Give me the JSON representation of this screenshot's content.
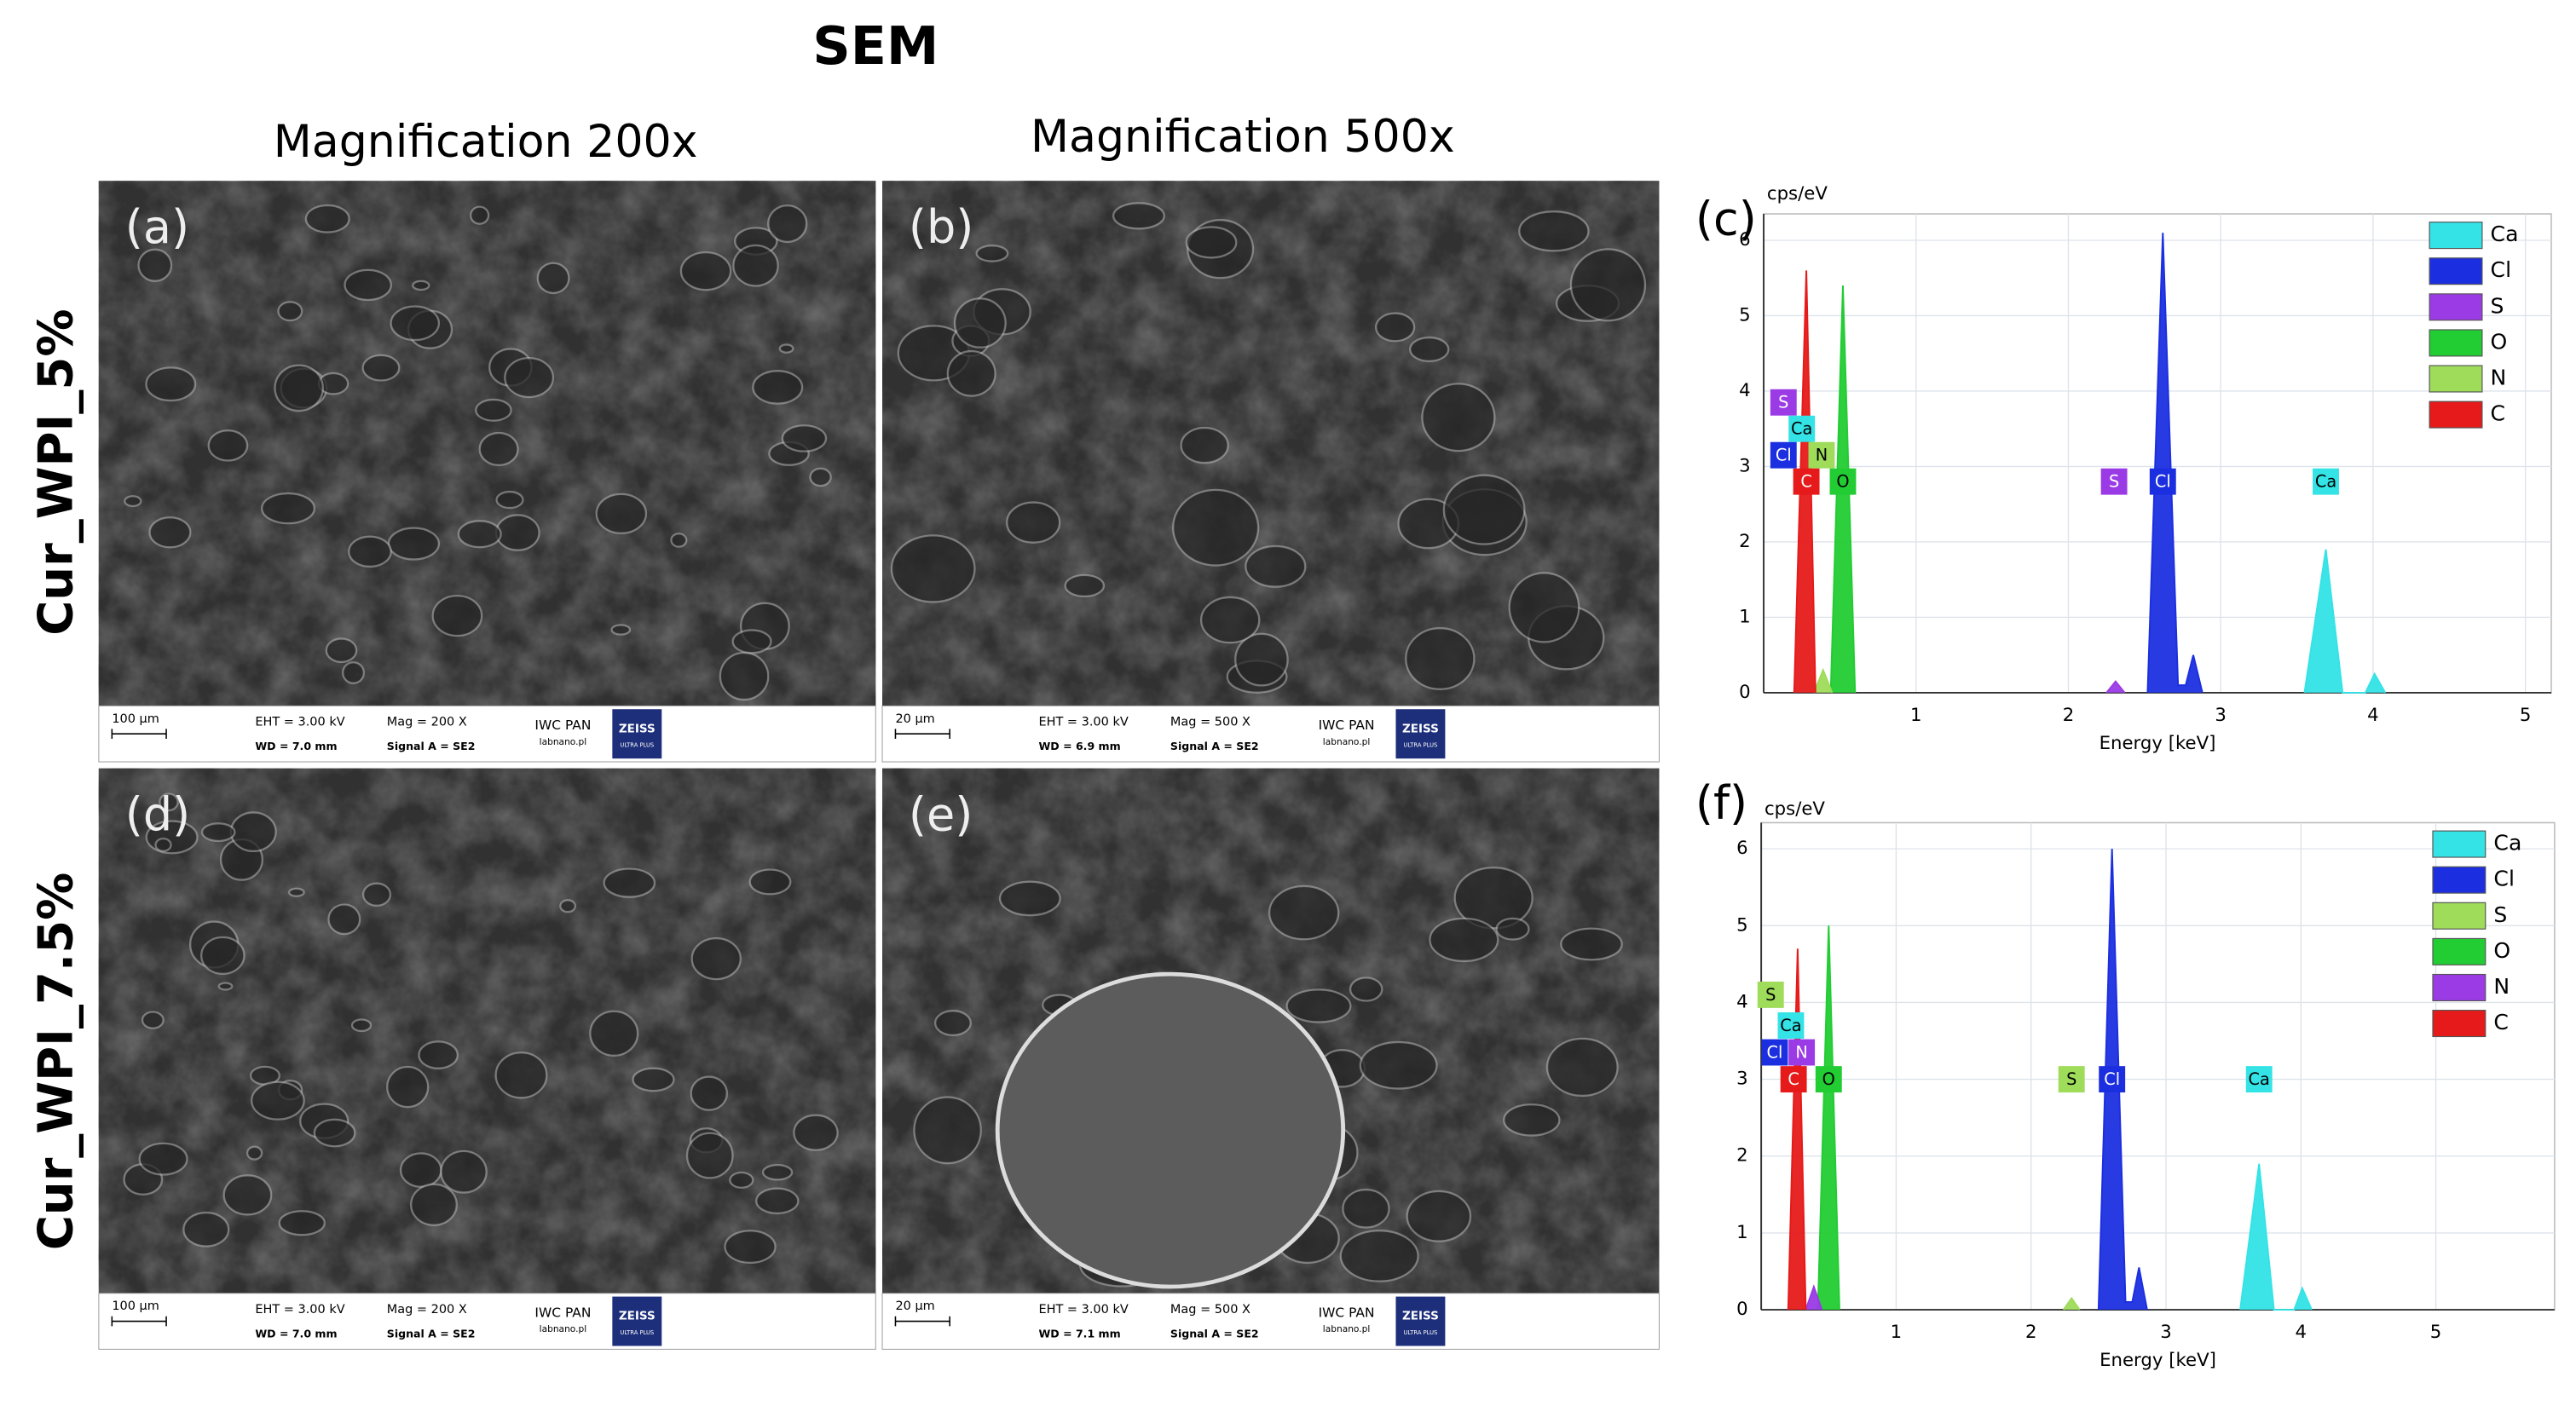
{
  "figure": {
    "title": "SEM",
    "columns": [
      "Magnification 200x",
      "Magnification 500x"
    ],
    "rows": [
      "Cur_WPI_5%",
      "Cur_WPI_7.5%"
    ],
    "panels": [
      {
        "label": "(a)",
        "scale": "100 µm",
        "eht": "EHT =  3.00 kV",
        "mag": "Mag =   200 X",
        "wd": "WD = 7.0 mm",
        "signal": "Signal A = SE2",
        "inst": "IWC PAN",
        "site": "labnano.pl",
        "logo": "ZEISS",
        "logo_sub": "ULTRA PLUS"
      },
      {
        "label": "(b)",
        "scale": "20 µm",
        "eht": "EHT =  3.00 kV",
        "mag": "Mag =   500 X",
        "wd": "WD = 6.9 mm",
        "signal": "Signal A = SE2",
        "inst": "IWC PAN",
        "site": "labnano.pl",
        "logo": "ZEISS",
        "logo_sub": "ULTRA PLUS"
      },
      {
        "label": "(d)",
        "scale": "100 µm",
        "eht": "EHT =  3.00 kV",
        "mag": "Mag =   200 X",
        "wd": "WD = 7.0 mm",
        "signal": "Signal A = SE2",
        "inst": "IWC PAN",
        "site": "labnano.pl",
        "logo": "ZEISS",
        "logo_sub": "ULTRA PLUS"
      },
      {
        "label": "(e)",
        "scale": "20 µm",
        "eht": "EHT =  3.00 kV",
        "mag": "Mag =   500 X",
        "wd": "WD = 7.1 mm",
        "signal": "Signal A = SE2",
        "inst": "IWC PAN",
        "site": "labnano.pl",
        "logo": "ZEISS",
        "logo_sub": "ULTRA PLUS"
      }
    ]
  },
  "chart_data": [
    {
      "type": "area",
      "panel_label": "(c)",
      "y_label": "cps/eV",
      "x_label": "Energy [keV]",
      "xlim": [
        0,
        5.17
      ],
      "ylim": [
        0,
        6.35
      ],
      "xticks": [
        1,
        2,
        3,
        4,
        5
      ],
      "yticks": [
        0,
        1,
        2,
        3,
        4,
        5,
        6
      ],
      "grid": true,
      "legend": "top-right",
      "series": [
        {
          "name": "Ca",
          "color": "#33e3e6",
          "x": [
            3.55,
            3.69,
            3.8,
            3.95,
            4.01,
            4.08
          ],
          "values": [
            0,
            1.9,
            0,
            0,
            0.25,
            0
          ]
        },
        {
          "name": "Cl",
          "color": "#1c2fe0",
          "x": [
            2.52,
            2.62,
            2.72,
            2.77,
            2.82,
            2.88
          ],
          "values": [
            0,
            6.1,
            0.1,
            0.1,
            0.5,
            0
          ]
        },
        {
          "name": "S",
          "color": "#9a3be6",
          "x": [
            2.25,
            2.31,
            2.37
          ],
          "values": [
            0,
            0.15,
            0
          ]
        },
        {
          "name": "O",
          "color": "#22cc33",
          "x": [
            0.44,
            0.52,
            0.6
          ],
          "values": [
            0,
            5.4,
            0
          ]
        },
        {
          "name": "N",
          "color": "#9edc5a",
          "x": [
            0.33,
            0.39,
            0.45
          ],
          "values": [
            0,
            0.3,
            0
          ]
        },
        {
          "name": "C",
          "color": "#e61a1a",
          "x": [
            0.2,
            0.28,
            0.34
          ],
          "values": [
            0,
            5.6,
            0
          ]
        }
      ],
      "annotations": [
        {
          "text": "S",
          "x": 0.13,
          "y": 3.85,
          "color": "#9a3be6"
        },
        {
          "text": "Ca",
          "x": 0.25,
          "y": 3.5,
          "color": "#33e3e6"
        },
        {
          "text": "Cl",
          "x": 0.13,
          "y": 3.15,
          "color": "#1c2fe0"
        },
        {
          "text": "N",
          "x": 0.38,
          "y": 3.15,
          "color": "#9edc5a"
        },
        {
          "text": "C",
          "x": 0.28,
          "y": 2.8,
          "color": "#e61a1a"
        },
        {
          "text": "O",
          "x": 0.52,
          "y": 2.8,
          "color": "#22cc33"
        },
        {
          "text": "S",
          "x": 2.3,
          "y": 2.8,
          "color": "#9a3be6"
        },
        {
          "text": "Cl",
          "x": 2.62,
          "y": 2.8,
          "color": "#1c2fe0"
        },
        {
          "text": "Ca",
          "x": 3.69,
          "y": 2.8,
          "color": "#33e3e6"
        }
      ]
    },
    {
      "type": "area",
      "panel_label": "(f)",
      "y_label": "cps/eV",
      "x_label": "Energy [keV]",
      "xlim": [
        0,
        5.88
      ],
      "ylim": [
        0,
        6.34
      ],
      "xticks": [
        1,
        2,
        3,
        4,
        5
      ],
      "yticks": [
        0,
        1,
        2,
        3,
        4,
        5,
        6
      ],
      "grid": true,
      "legend": "top-right",
      "series": [
        {
          "name": "Ca",
          "color": "#33e3e6",
          "x": [
            3.55,
            3.69,
            3.8,
            3.95,
            4.01,
            4.08
          ],
          "values": [
            0,
            1.9,
            0,
            0,
            0.28,
            0
          ]
        },
        {
          "name": "Cl",
          "color": "#1c2fe0",
          "x": [
            2.5,
            2.6,
            2.7,
            2.75,
            2.8,
            2.86
          ],
          "values": [
            0,
            6.0,
            0.1,
            0.1,
            0.55,
            0
          ]
        },
        {
          "name": "S",
          "color": "#9edc5a",
          "x": [
            2.24,
            2.3,
            2.36
          ],
          "values": [
            0,
            0.15,
            0
          ]
        },
        {
          "name": "O",
          "color": "#22cc33",
          "x": [
            0.42,
            0.5,
            0.58
          ],
          "values": [
            0,
            5.0,
            0
          ]
        },
        {
          "name": "N",
          "color": "#9a3be6",
          "x": [
            0.33,
            0.39,
            0.45
          ],
          "values": [
            0,
            0.3,
            0
          ]
        },
        {
          "name": "C",
          "color": "#e61a1a",
          "x": [
            0.2,
            0.27,
            0.33
          ],
          "values": [
            0,
            4.7,
            0
          ]
        }
      ],
      "annotations": [
        {
          "text": "S",
          "x": 0.07,
          "y": 4.1,
          "color": "#9edc5a"
        },
        {
          "text": "Ca",
          "x": 0.22,
          "y": 3.7,
          "color": "#33e3e6"
        },
        {
          "text": "Cl",
          "x": 0.1,
          "y": 3.35,
          "color": "#1c2fe0"
        },
        {
          "text": "N",
          "x": 0.3,
          "y": 3.35,
          "color": "#9a3be6"
        },
        {
          "text": "C",
          "x": 0.24,
          "y": 3.0,
          "color": "#e61a1a"
        },
        {
          "text": "O",
          "x": 0.5,
          "y": 3.0,
          "color": "#22cc33"
        },
        {
          "text": "S",
          "x": 2.3,
          "y": 3.0,
          "color": "#9edc5a"
        },
        {
          "text": "Cl",
          "x": 2.6,
          "y": 3.0,
          "color": "#1c2fe0"
        },
        {
          "text": "Ca",
          "x": 3.69,
          "y": 3.0,
          "color": "#33e3e6"
        }
      ]
    }
  ]
}
